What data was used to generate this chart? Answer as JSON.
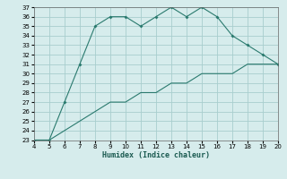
{
  "xlabel": "Humidex (Indice chaleur)",
  "ylabel": "",
  "x": [
    4,
    5,
    6,
    7,
    8,
    9,
    10,
    11,
    12,
    13,
    14,
    15,
    16,
    17,
    18,
    19,
    20
  ],
  "y_upper": [
    23,
    23,
    27,
    31,
    35,
    36,
    36,
    35,
    36,
    37,
    36,
    37,
    36,
    34,
    33,
    32,
    31
  ],
  "y_lower": [
    23,
    23,
    24,
    25,
    26,
    27,
    27,
    28,
    28,
    29,
    29,
    30,
    30,
    30,
    31,
    31,
    31
  ],
  "line_color": "#2a7a6e",
  "bg_color": "#d6ecec",
  "grid_color": "#a8cece",
  "xlim": [
    4,
    20
  ],
  "ylim": [
    23,
    37
  ],
  "xticks": [
    4,
    5,
    6,
    7,
    8,
    9,
    10,
    11,
    12,
    13,
    14,
    15,
    16,
    17,
    18,
    19,
    20
  ],
  "yticks": [
    23,
    24,
    25,
    26,
    27,
    28,
    29,
    30,
    31,
    32,
    33,
    34,
    35,
    36,
    37
  ]
}
